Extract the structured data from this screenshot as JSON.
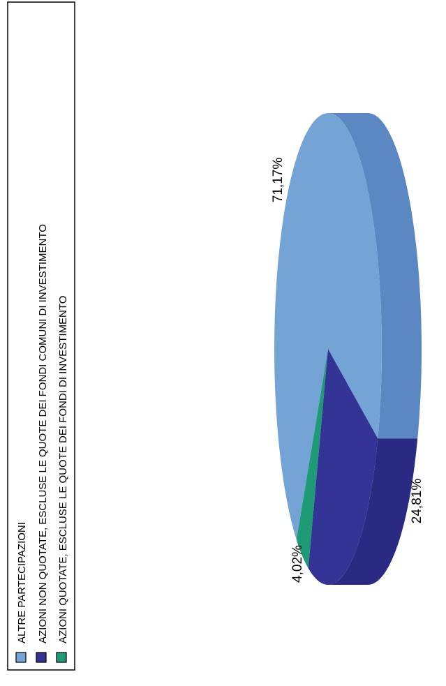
{
  "chart_data": {
    "type": "pie",
    "title": "",
    "slices": [
      {
        "label": "ALTRE PARTECIPAZIONI",
        "value": 71.17,
        "value_label": "71,17%",
        "color": "#74a4d6",
        "side_color": "#5b88c2"
      },
      {
        "label": "AZIONI NON  QUOTATE, ESCLUSE LE QUOTE DEI FONDI COMUNI DI INVESTIMENTO",
        "value": 24.81,
        "value_label": "24,81%",
        "color": "#343497",
        "side_color": "#2a2a82"
      },
      {
        "label": "AZIONI QUOTATE, ESCLUSE LE QUOTE DEI FONDI  DI INVESTIMENTO",
        "value": 4.02,
        "value_label": "4,02%",
        "color": "#1f9a76",
        "side_color": "#16765a"
      }
    ],
    "legend_position": "left",
    "orientation": "rotated-90"
  }
}
